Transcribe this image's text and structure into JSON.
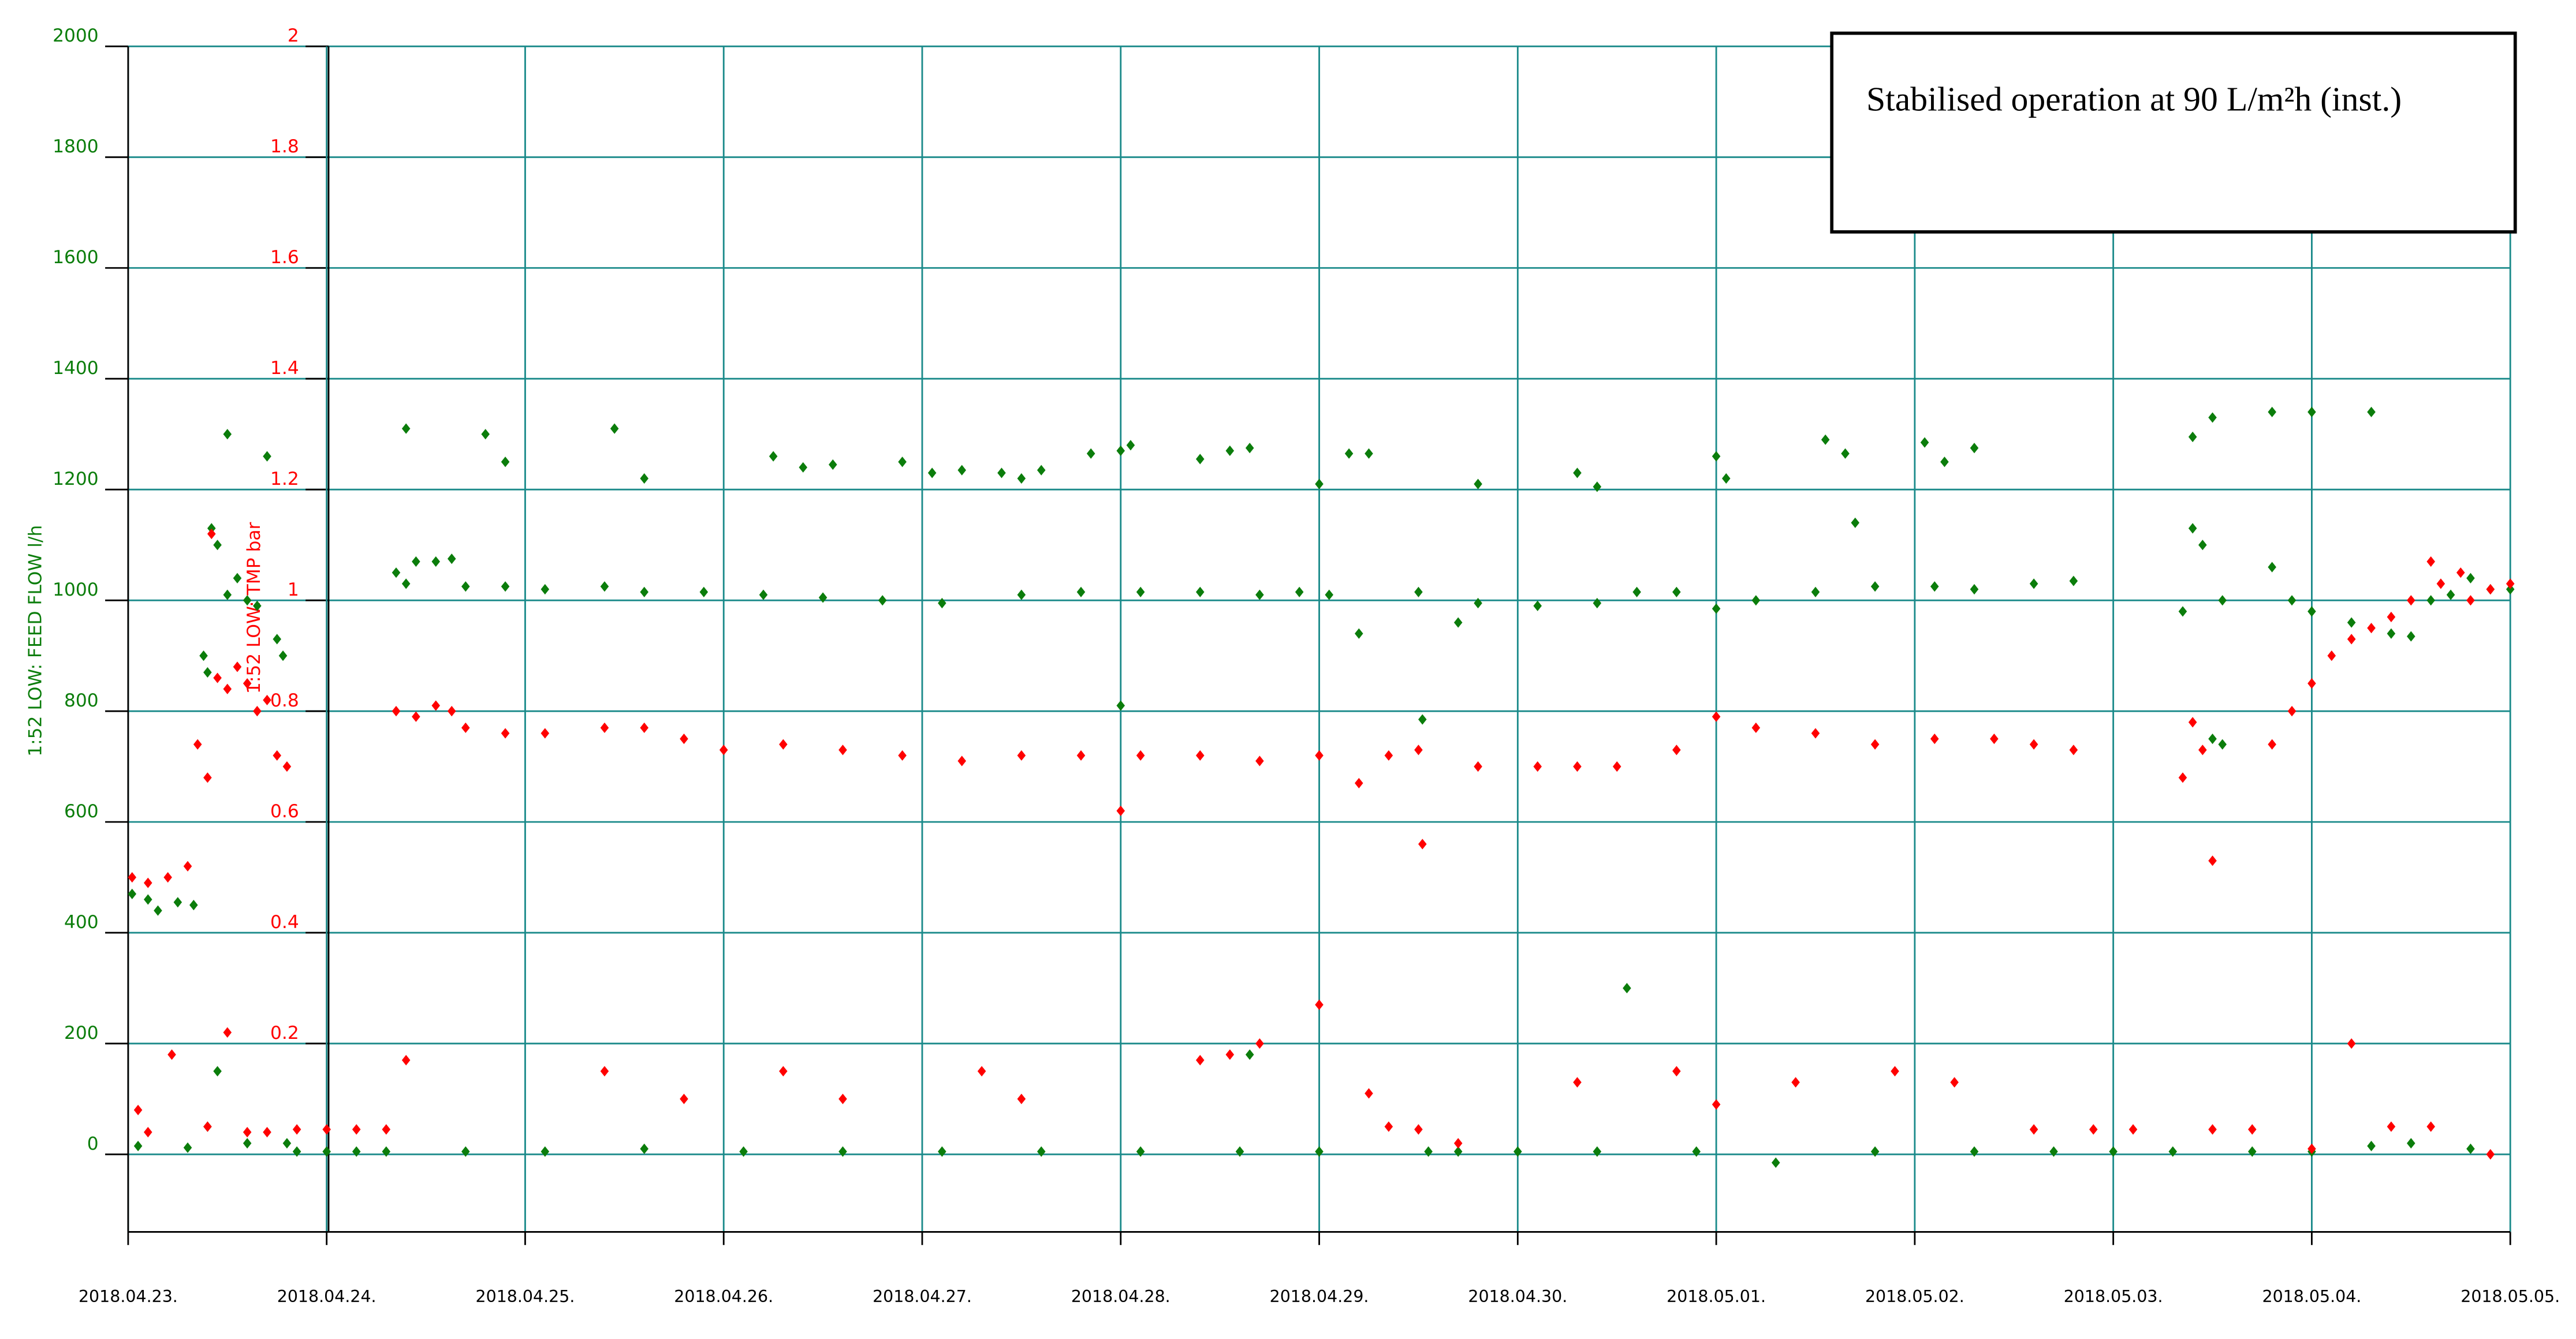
{
  "chart_data": {
    "type": "scatter",
    "annotation": "Stabilised operation at 90 L/m²h (inst.)",
    "ylabel": "1:52 LOW: FEED FLOW l/h",
    "y2label": "1:52 LOW: TMP bar",
    "xlim": [
      0,
      12
    ],
    "xticks": [
      {
        "value": 0,
        "label": "2018.04.23."
      },
      {
        "value": 1,
        "label": "2018.04.24."
      },
      {
        "value": 2,
        "label": "2018.04.25."
      },
      {
        "value": 3,
        "label": "2018.04.26."
      },
      {
        "value": 4,
        "label": "2018.04.27."
      },
      {
        "value": 5,
        "label": "2018.04.28."
      },
      {
        "value": 6,
        "label": "2018.04.29."
      },
      {
        "value": 7,
        "label": "2018.04.30."
      },
      {
        "value": 8,
        "label": "2018.05.01."
      },
      {
        "value": 9,
        "label": "2018.05.02."
      },
      {
        "value": 10,
        "label": "2018.05.03."
      },
      {
        "value": 11,
        "label": "2018.05.04."
      },
      {
        "value": 12,
        "label": "2018.05.05."
      }
    ],
    "ylim": [
      -140,
      2000
    ],
    "yticks": [
      0,
      200,
      400,
      600,
      800,
      1000,
      1200,
      1400,
      1600,
      1800,
      2000
    ],
    "y2lim": [
      -0.14,
      2
    ],
    "y2ticks": [
      0.2,
      0.4,
      0.6,
      0.8,
      1,
      1.2,
      1.4,
      1.6,
      1.8,
      2
    ],
    "grid": true,
    "series": [
      {
        "name": "1:52 LOW: FEED FLOW l/h",
        "color": "#0b7d0b",
        "axis": "y",
        "x": [
          0.02,
          0.1,
          0.15,
          0.25,
          0.33,
          0.38,
          0.4,
          0.42,
          0.45,
          0.5,
          0.45,
          0.5,
          0.55,
          0.6,
          0.65,
          0.7,
          0.75,
          0.78,
          0.05,
          0.3,
          0.4,
          0.6,
          0.8,
          0.85,
          1.0,
          1.15,
          1.3,
          1.35,
          1.4,
          1.45,
          1.55,
          1.63,
          1.4,
          1.7,
          1.9,
          2.1,
          2.4,
          2.6,
          2.9,
          3.2,
          3.5,
          3.8,
          4.1,
          4.5,
          4.8,
          5.1,
          5.4,
          5.7,
          5.9,
          6.05,
          6.2,
          6.5,
          6.52,
          6.7,
          6.8,
          7.1,
          7.4,
          7.6,
          7.8,
          8.0,
          8.2,
          8.5,
          8.8,
          9.1,
          9.3,
          9.6,
          9.8,
          1.8,
          1.9,
          2.45,
          2.6,
          3.25,
          3.4,
          3.55,
          3.9,
          4.05,
          4.2,
          4.4,
          4.5,
          4.6,
          4.85,
          5.0,
          5.05,
          5.4,
          5.55,
          5.65,
          6.0,
          6.15,
          6.25,
          6.8,
          7.3,
          7.4,
          8.0,
          8.05,
          8.55,
          8.65,
          8.7,
          9.05,
          9.15,
          9.3,
          10.4,
          10.5,
          10.8,
          11.0,
          11.3,
          5.0,
          7.55,
          5.65,
          10.35,
          10.4,
          10.45,
          10.5,
          10.55,
          10.8,
          10.9,
          11.0,
          11.2,
          11.4,
          11.5,
          11.6,
          11.7,
          11.8,
          11.9,
          12.0,
          10.55,
          1.7,
          2.1,
          2.6,
          3.1,
          3.6,
          4.1,
          4.6,
          5.1,
          5.6,
          6.0,
          6.55,
          6.7,
          7.0,
          7.4,
          7.9,
          8.3,
          8.8,
          9.3,
          9.7,
          10.0,
          10.3,
          10.7,
          11.0,
          11.3,
          11.5,
          11.8
        ],
        "values": [
          470,
          460,
          440,
          455,
          450,
          900,
          870,
          1130,
          1100,
          1010,
          150,
          1300,
          1040,
          1000,
          990,
          1260,
          930,
          900,
          15,
          12,
          50,
          20,
          20,
          5,
          5,
          5,
          5,
          1050,
          1030,
          1070,
          1070,
          1075,
          1310,
          1025,
          1025,
          1020,
          1025,
          1015,
          1015,
          1010,
          1005,
          1000,
          995,
          1010,
          1015,
          1015,
          1015,
          1010,
          1015,
          1010,
          940,
          1015,
          785,
          960,
          995,
          990,
          995,
          1015,
          1015,
          985,
          1000,
          1015,
          1025,
          1025,
          1020,
          1030,
          1035,
          1300,
          1250,
          1310,
          1220,
          1260,
          1240,
          1245,
          1250,
          1230,
          1235,
          1230,
          1220,
          1235,
          1265,
          1270,
          1280,
          1255,
          1270,
          1275,
          1210,
          1265,
          1265,
          1210,
          1230,
          1205,
          1260,
          1220,
          1290,
          1265,
          1140,
          1285,
          1250,
          1275,
          1295,
          1330,
          1340,
          1340,
          1340,
          810,
          300,
          180,
          980,
          1130,
          1100,
          750,
          740,
          1060,
          1000,
          980,
          960,
          940,
          935,
          1000,
          1010,
          1040,
          1020,
          1020,
          1000,
          5,
          5,
          10,
          5,
          5,
          5,
          5,
          5,
          5,
          5,
          5,
          5,
          5,
          5,
          5,
          -15,
          5,
          5,
          5,
          5,
          5,
          5,
          5,
          15,
          20,
          10
        ]
      },
      {
        "name": "1:52 LOW: TMP bar",
        "color": "#ff0000",
        "axis": "y2",
        "x": [
          0.02,
          0.1,
          0.2,
          0.3,
          0.35,
          0.4,
          0.42,
          0.45,
          0.5,
          0.55,
          0.5,
          0.6,
          0.65,
          0.7,
          0.75,
          0.8,
          0.05,
          0.1,
          0.22,
          0.4,
          0.6,
          0.7,
          0.85,
          1.0,
          1.15,
          1.3,
          1.35,
          1.45,
          1.55,
          1.63,
          1.7,
          1.9,
          2.1,
          2.4,
          2.6,
          2.8,
          3.0,
          3.3,
          3.6,
          3.9,
          4.2,
          4.5,
          4.8,
          5.1,
          5.4,
          5.7,
          6.0,
          6.2,
          6.35,
          6.5,
          6.52,
          5.0,
          6.0,
          6.8,
          7.1,
          7.3,
          7.5,
          7.8,
          8.0,
          8.2,
          8.5,
          8.8,
          9.1,
          9.4,
          9.6,
          9.8,
          10.35,
          10.4,
          10.45,
          10.5,
          10.8,
          10.9,
          11.0,
          11.1,
          11.2,
          11.3,
          11.4,
          11.5,
          11.6,
          11.65,
          11.75,
          11.8,
          11.9,
          12.0,
          1.4,
          2.4,
          2.8,
          3.3,
          3.6,
          4.3,
          4.5,
          5.4,
          5.55,
          5.7,
          6.25,
          6.35,
          6.5,
          6.7,
          7.3,
          7.8,
          8.0,
          8.4,
          8.9,
          9.2,
          9.6,
          9.9,
          10.1,
          10.5,
          10.7,
          11.0,
          11.2,
          11.4,
          11.6,
          11.9
        ],
        "values": [
          0.5,
          0.49,
          0.5,
          0.52,
          0.74,
          0.68,
          1.12,
          0.86,
          0.84,
          0.88,
          0.22,
          0.85,
          0.8,
          0.82,
          0.72,
          0.7,
          0.08,
          0.04,
          0.18,
          0.05,
          0.04,
          0.04,
          0.045,
          0.045,
          0.045,
          0.045,
          0.8,
          0.79,
          0.81,
          0.8,
          0.77,
          0.76,
          0.76,
          0.77,
          0.77,
          0.75,
          0.73,
          0.74,
          0.73,
          0.72,
          0.71,
          0.72,
          0.72,
          0.72,
          0.72,
          0.71,
          0.72,
          0.67,
          0.72,
          0.73,
          0.56,
          0.62,
          0.27,
          0.7,
          0.7,
          0.7,
          0.7,
          0.73,
          0.79,
          0.77,
          0.76,
          0.74,
          0.75,
          0.75,
          0.74,
          0.73,
          0.68,
          0.78,
          0.73,
          0.53,
          0.74,
          0.8,
          0.85,
          0.9,
          0.93,
          0.95,
          0.97,
          1.0,
          1.07,
          1.03,
          1.05,
          1.0,
          1.02,
          1.03,
          0.17,
          0.15,
          0.1,
          0.15,
          0.1,
          0.15,
          0.1,
          0.17,
          0.18,
          0.2,
          0.11,
          0.05,
          0.045,
          0.02,
          0.13,
          0.15,
          0.09,
          0.13,
          0.15,
          0.13,
          0.045,
          0.045,
          0.045,
          0.045,
          0.045,
          0.01,
          0.2,
          0.05,
          0.05,
          0.0
        ]
      }
    ]
  }
}
